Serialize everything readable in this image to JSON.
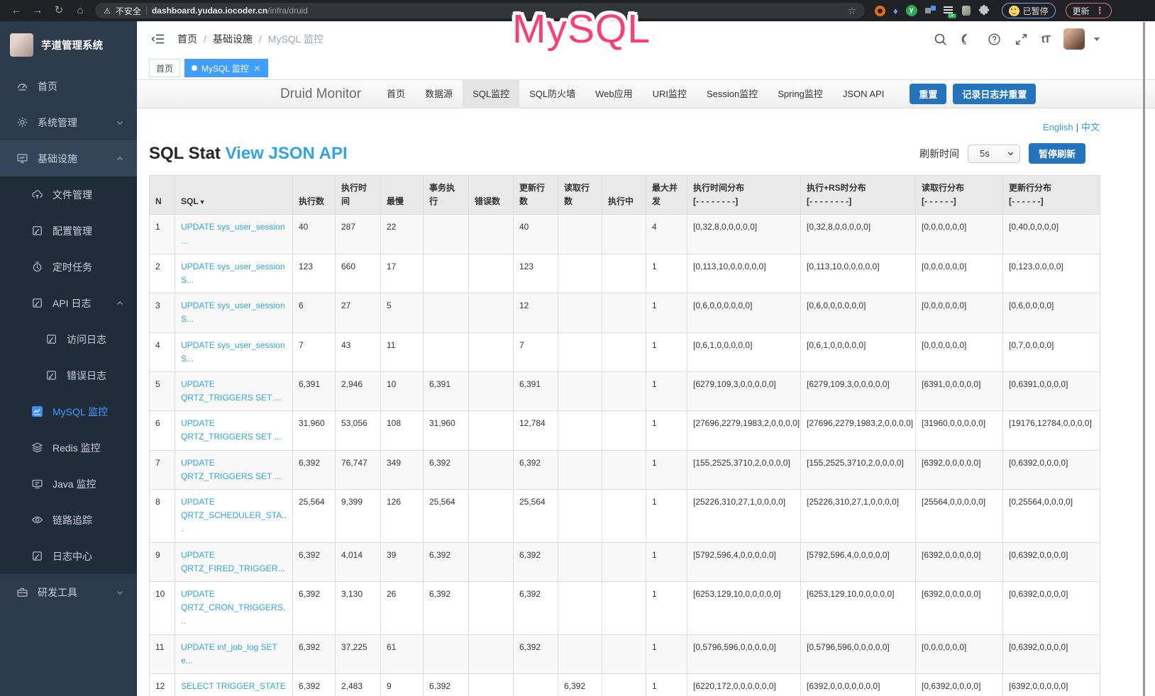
{
  "browser": {
    "secure_warning": "不安全",
    "url_domain": "dashboard.yudao.iocoder.cn",
    "url_path": "/infra/druid",
    "paused_badge": "已暂停",
    "update_button": "更新"
  },
  "icons": {
    "back": "←",
    "forward": "→",
    "reload": "↻",
    "home": "⌂",
    "warning": "⚠",
    "star": "☆",
    "gem": "♦",
    "puzzle": "⬡",
    "menu_dots": "⋮",
    "font_size": "tT",
    "divider": "|",
    "slash": "/"
  },
  "overlay": {
    "text": "MySQL"
  },
  "sidebar": {
    "app_title": "芋道管理系统",
    "items": [
      {
        "label": "首页"
      },
      {
        "label": "系统管理"
      },
      {
        "label": "基础设施",
        "children": [
          {
            "label": "文件管理"
          },
          {
            "label": "配置管理"
          },
          {
            "label": "定时任务"
          },
          {
            "label": "API 日志",
            "children": [
              {
                "label": "访问日志"
              },
              {
                "label": "错误日志"
              }
            ]
          },
          {
            "label": "MySQL 监控",
            "active": true
          },
          {
            "label": "Redis 监控"
          },
          {
            "label": "Java 监控"
          },
          {
            "label": "链路追踪"
          },
          {
            "label": "日志中心"
          }
        ]
      },
      {
        "label": "研发工具"
      }
    ]
  },
  "topbar": {
    "breadcrumb": [
      "首页",
      "基础设施",
      "MySQL 监控"
    ]
  },
  "tags": {
    "home": "首页",
    "active_tab": "MySQL 监控"
  },
  "druid": {
    "brand": "Druid Monitor",
    "nav": [
      "首页",
      "数据源",
      "SQL监控",
      "SQL防火墙",
      "Web应用",
      "URI监控",
      "Session监控",
      "Spring监控",
      "JSON API"
    ],
    "reset_button": "重置",
    "log_reset_button": "记录日志并重置",
    "lang_english": "English",
    "lang_chinese": "中文",
    "page_title": "SQL Stat",
    "view_json_link": "View JSON API",
    "refresh_label": "刷新时间",
    "refresh_interval": "5s",
    "pause_button": "暂停刷新"
  },
  "table": {
    "sort_icon": "▼",
    "headers": [
      {
        "l1": "N"
      },
      {
        "l1": "SQL"
      },
      {
        "l1": "执行数"
      },
      {
        "l1": "执行时间"
      },
      {
        "l1": "最慢"
      },
      {
        "l1": "事务执行"
      },
      {
        "l1": "错误数"
      },
      {
        "l1": "更新行数"
      },
      {
        "l1": "读取行数"
      },
      {
        "l1": "执行中"
      },
      {
        "l1": "最大并",
        "l2": "发"
      },
      {
        "l1": "执行时间分布",
        "l2": "[- - - - - - - -]"
      },
      {
        "l1": "执行+RS时分布",
        "l2": "[- - - - - - - -]"
      },
      {
        "l1": "读取行分布",
        "l2": "[- - - - - -]"
      },
      {
        "l1": "更新行分布",
        "l2": "[- - - - - -]"
      }
    ],
    "rows": [
      {
        "n": "1",
        "sql": "UPDATE sys_user_session ...",
        "values": [
          "40",
          "287",
          "22",
          "",
          "",
          "40",
          "",
          "",
          "4",
          "[0,32,8,0,0,0,0,0]",
          "[0,32,8,0,0,0,0,0]",
          "[0,0,0,0,0,0]",
          "[0,40,0,0,0,0]"
        ]
      },
      {
        "n": "2",
        "sql": "UPDATE sys_user_session S...",
        "values": [
          "123",
          "660",
          "17",
          "",
          "",
          "123",
          "",
          "",
          "1",
          "[0,113,10,0,0,0,0,0]",
          "[0,113,10,0,0,0,0,0]",
          "[0,0,0,0,0,0]",
          "[0,123,0,0,0,0]"
        ]
      },
      {
        "n": "3",
        "sql": "UPDATE sys_user_session S...",
        "values": [
          "6",
          "27",
          "5",
          "",
          "",
          "12",
          "",
          "",
          "1",
          "[0,6,0,0,0,0,0,0]",
          "[0,6,0,0,0,0,0,0]",
          "[0,0,0,0,0,0]",
          "[0,6,0,0,0,0]"
        ]
      },
      {
        "n": "4",
        "sql": "UPDATE sys_user_session S...",
        "values": [
          "7",
          "43",
          "11",
          "",
          "",
          "7",
          "",
          "",
          "1",
          "[0,6,1,0,0,0,0,0]",
          "[0,6,1,0,0,0,0,0]",
          "[0,0,0,0,0,0]",
          "[0,7,0,0,0,0]"
        ]
      },
      {
        "n": "5",
        "sql": "UPDATE QRTZ_TRIGGERS SET ...",
        "values": [
          "6,391",
          "2,946",
          "10",
          "6,391",
          "",
          "6,391",
          "",
          "",
          "1",
          "[6279,109,3,0,0,0,0,0]",
          "[6279,109,3,0,0,0,0,0]",
          "[6391,0,0,0,0,0]",
          "[0,6391,0,0,0,0]"
        ]
      },
      {
        "n": "6",
        "sql": "UPDATE QRTZ_TRIGGERS SET ...",
        "values": [
          "31,960",
          "53,056",
          "108",
          "31,960",
          "",
          "12,784",
          "",
          "",
          "1",
          "[27696,2279,1983,2,0,0,0,0]",
          "[27696,2279,1983,2,0,0,0,0]",
          "[31960,0,0,0,0,0]",
          "[19176,12784,0,0,0,0]"
        ]
      },
      {
        "n": "7",
        "sql": "UPDATE QRTZ_TRIGGERS SET ...",
        "values": [
          "6,392",
          "76,747",
          "349",
          "6,392",
          "",
          "6,392",
          "",
          "",
          "1",
          "[155,2525,3710,2,0,0,0,0]",
          "[155,2525,3710,2,0,0,0,0]",
          "[6392,0,0,0,0,0]",
          "[0,6392,0,0,0,0]"
        ]
      },
      {
        "n": "8",
        "sql": "UPDATE QRTZ_SCHEDULER_STA...",
        "values": [
          "25,564",
          "9,399",
          "126",
          "25,564",
          "",
          "25,564",
          "",
          "",
          "1",
          "[25226,310,27,1,0,0,0,0]",
          "[25226,310,27,1,0,0,0,0]",
          "[25564,0,0,0,0,0]",
          "[0,25564,0,0,0,0]"
        ]
      },
      {
        "n": "9",
        "sql": "UPDATE QRTZ_FIRED_TRIGGER...",
        "values": [
          "6,392",
          "4,014",
          "39",
          "6,392",
          "",
          "6,392",
          "",
          "",
          "1",
          "[5792,596,4,0,0,0,0,0]",
          "[5792,596,4,0,0,0,0,0]",
          "[6392,0,0,0,0,0]",
          "[0,6392,0,0,0,0]"
        ]
      },
      {
        "n": "10",
        "sql": "UPDATE QRTZ_CRON_TRIGGERS...",
        "values": [
          "6,392",
          "3,130",
          "26",
          "6,392",
          "",
          "6,392",
          "",
          "",
          "1",
          "[6253,129,10,0,0,0,0,0]",
          "[6253,129,10,0,0,0,0,0]",
          "[6392,0,0,0,0,0]",
          "[0,6392,0,0,0,0]"
        ]
      },
      {
        "n": "11",
        "sql": "UPDATE inf_job_log SET e...",
        "values": [
          "6,392",
          "37,225",
          "61",
          "",
          "",
          "6,392",
          "",
          "",
          "1",
          "[0,5796,596,0,0,0,0,0]",
          "[0,5796,596,0,0,0,0,0]",
          "[0,0,0,0,0,0]",
          "[0,6392,0,0,0,0]"
        ]
      },
      {
        "n": "12",
        "sql": "SELECT TRIGGER_STATE",
        "values": [
          "6,392",
          "2,483",
          "9",
          "6,392",
          "",
          "",
          "6,392",
          "",
          "1",
          "[6220,172,0,0,0,0,0,0]",
          "[6392,0,0,0,0,0,0,0]",
          "[0,6392,0,0,0,0]",
          "[6392,0,0,0,0,0]"
        ]
      }
    ]
  }
}
